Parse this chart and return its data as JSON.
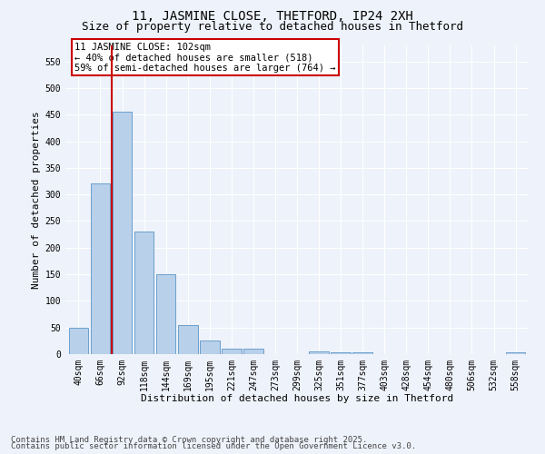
{
  "title": "11, JASMINE CLOSE, THETFORD, IP24 2XH",
  "subtitle": "Size of property relative to detached houses in Thetford",
  "xlabel": "Distribution of detached houses by size in Thetford",
  "ylabel": "Number of detached properties",
  "categories": [
    "40sqm",
    "66sqm",
    "92sqm",
    "118sqm",
    "144sqm",
    "169sqm",
    "195sqm",
    "221sqm",
    "247sqm",
    "273sqm",
    "299sqm",
    "325sqm",
    "351sqm",
    "377sqm",
    "403sqm",
    "428sqm",
    "454sqm",
    "480sqm",
    "506sqm",
    "532sqm",
    "558sqm"
  ],
  "values": [
    50,
    320,
    455,
    230,
    150,
    55,
    25,
    10,
    10,
    0,
    0,
    5,
    3,
    3,
    0,
    0,
    0,
    0,
    0,
    0,
    3
  ],
  "bar_color": "#b8d0ea",
  "bar_edge_color": "#6aa0cc",
  "vline_color": "#cc0000",
  "annotation_text": "11 JASMINE CLOSE: 102sqm\n← 40% of detached houses are smaller (518)\n59% of semi-detached houses are larger (764) →",
  "annotation_box_color": "#cc0000",
  "annotation_bg": "#ffffff",
  "ylim": [
    0,
    580
  ],
  "yticks": [
    0,
    50,
    100,
    150,
    200,
    250,
    300,
    350,
    400,
    450,
    500,
    550
  ],
  "background_color": "#eef2fa",
  "grid_color": "#ffffff",
  "footer_line1": "Contains HM Land Registry data © Crown copyright and database right 2025.",
  "footer_line2": "Contains public sector information licensed under the Open Government Licence v3.0.",
  "title_fontsize": 10,
  "subtitle_fontsize": 9,
  "axis_label_fontsize": 8,
  "tick_fontsize": 7,
  "footer_fontsize": 6.5,
  "ann_fontsize": 7.5
}
